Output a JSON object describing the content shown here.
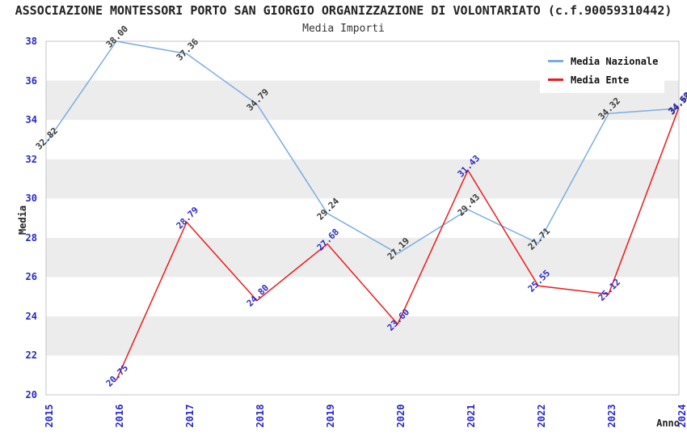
{
  "header": {
    "title": "ASSOCIAZIONE MONTESSORI PORTO SAN GIORGIO ORGANIZZAZIONE DI VOLONTARIATO (c.f.90059310442)",
    "subtitle": "Media Importi"
  },
  "chart_data": {
    "type": "line",
    "title": "Media Importi",
    "xlabel": "Anno",
    "ylabel": "Media",
    "x": [
      2015,
      2016,
      2017,
      2018,
      2019,
      2020,
      2021,
      2022,
      2023,
      2024
    ],
    "ylim": [
      20,
      38
    ],
    "ytick_step": 2,
    "grid": "horizontal-alternating-bands",
    "legend_position": "upper-right",
    "label_decimals": 2,
    "tick_color": "#2727c7",
    "band_colors": [
      "#ffffff",
      "#ececec"
    ],
    "series": [
      {
        "name": "Media Nazionale",
        "color": "#7aade2",
        "label_color": "#3a3a3a",
        "values": [
          32.82,
          38.0,
          37.36,
          34.79,
          29.24,
          27.19,
          29.43,
          27.71,
          34.32,
          34.58
        ]
      },
      {
        "name": "Media Ente",
        "color": "#ea1c1c",
        "label_color": "#2a2ac4",
        "values": [
          null,
          20.75,
          28.79,
          24.8,
          27.68,
          23.6,
          31.43,
          25.55,
          25.12,
          34.63
        ]
      }
    ]
  }
}
